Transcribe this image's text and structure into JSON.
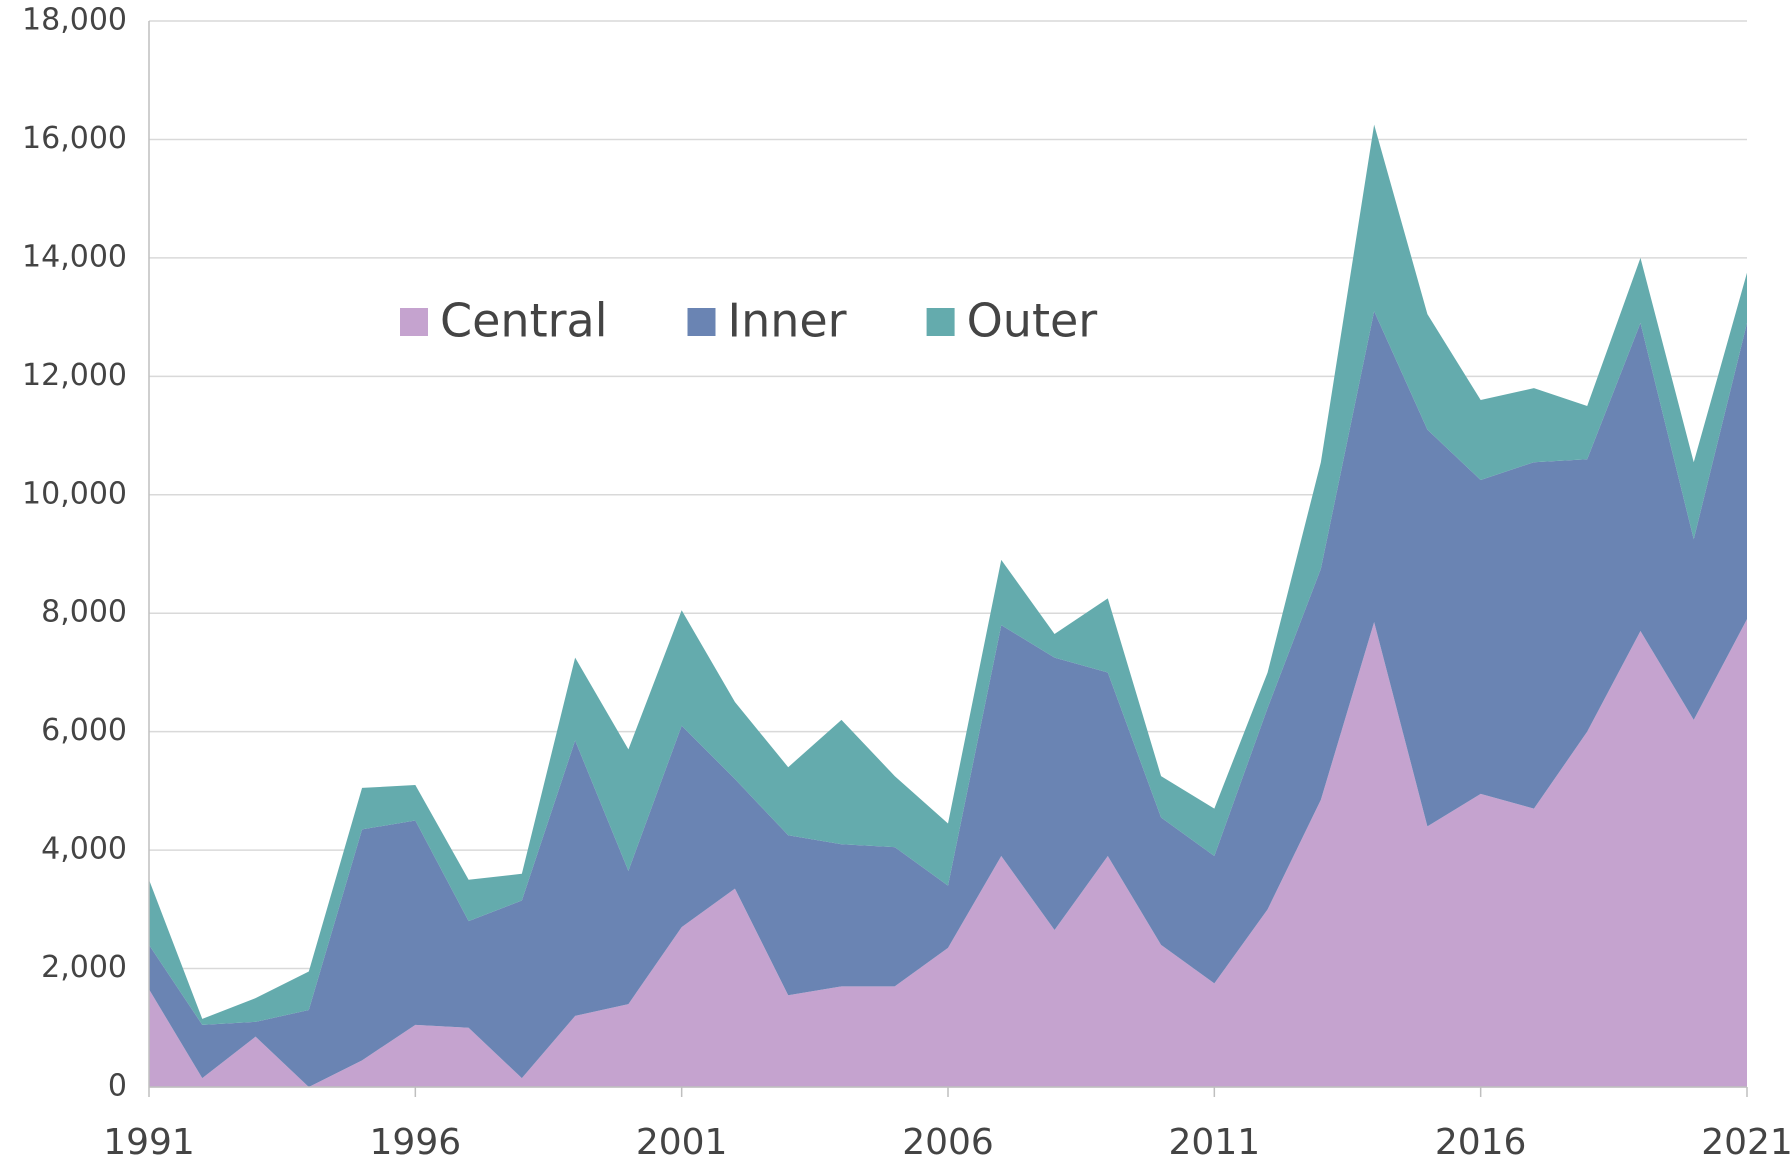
{
  "chart_data": {
    "type": "stacked_area",
    "x": [
      1991,
      1992,
      1993,
      1994,
      1995,
      1996,
      1997,
      1998,
      1999,
      2000,
      2001,
      2002,
      2003,
      2004,
      2005,
      2006,
      2007,
      2008,
      2009,
      2010,
      2011,
      2012,
      2013,
      2014,
      2015,
      2016,
      2017,
      2018,
      2019,
      2020,
      2021
    ],
    "series": [
      {
        "name": "Central",
        "color": "#c5a3cf",
        "values": [
          1650,
          150,
          850,
          0,
          450,
          1050,
          1000,
          150,
          1200,
          1400,
          2700,
          3350,
          1550,
          1700,
          1700,
          2350,
          3900,
          2650,
          3900,
          2400,
          1750,
          3000,
          4850,
          7850,
          4400,
          4950,
          4700,
          6000,
          7700,
          6200,
          7900
        ]
      },
      {
        "name": "Inner",
        "color": "#6a84b3",
        "values": [
          750,
          900,
          250,
          1300,
          3900,
          3450,
          1800,
          3000,
          4650,
          2250,
          3400,
          1850,
          2700,
          2400,
          2350,
          1050,
          3900,
          4600,
          3100,
          2150,
          2150,
          3400,
          3900,
          5250,
          6700,
          5300,
          5850,
          4600,
          5200,
          3050,
          5000
        ]
      },
      {
        "name": "Outer",
        "color": "#64abad",
        "values": [
          1100,
          100,
          400,
          650,
          700,
          600,
          700,
          450,
          1400,
          2050,
          1950,
          1300,
          1150,
          2100,
          1200,
          1050,
          1100,
          400,
          1250,
          700,
          800,
          600,
          1800,
          3150,
          1950,
          1350,
          1250,
          900,
          1100,
          1300,
          850
        ]
      }
    ],
    "xlim": [
      1991,
      2021
    ],
    "xticks": [
      1991,
      1996,
      2001,
      2006,
      2011,
      2016,
      2021
    ],
    "ylim": [
      0,
      18000
    ],
    "yticks": [
      0,
      {
        "value": 2000,
        "label": "2,000"
      },
      {
        "value": 4000,
        "label": "4,000"
      },
      {
        "value": 6000,
        "label": "6,000"
      },
      {
        "value": 8000,
        "label": "8,000"
      },
      {
        "value": 10000,
        "label": "10,000"
      },
      {
        "value": 12000,
        "label": "12,000"
      },
      {
        "value": 14000,
        "label": "14,000"
      },
      {
        "value": 16000,
        "label": "16,000"
      },
      {
        "value": 18000,
        "label": "18,000"
      }
    ],
    "grid": true,
    "legend": "top"
  }
}
